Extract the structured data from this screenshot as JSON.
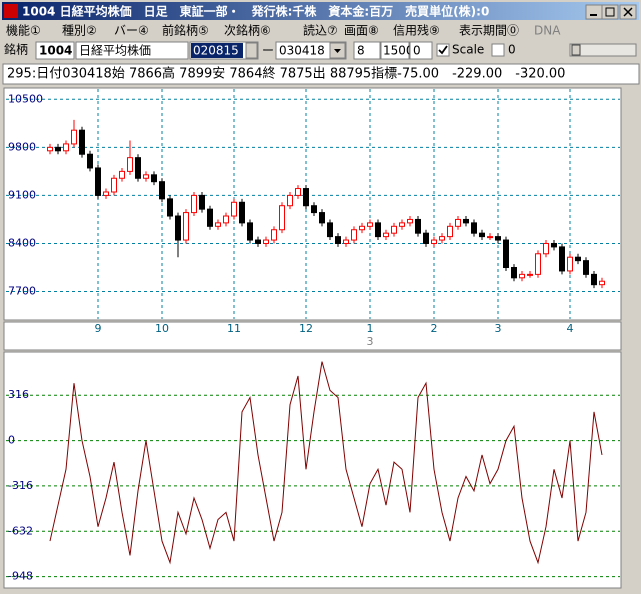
{
  "window": {
    "title": "1004 日経平均株価　日足　東証一部・　発行株:千株　資本金:百万　売買単位(株):0"
  },
  "menu": [
    "機能①",
    "種別②",
    "バー④",
    "前銘柄⑤",
    "次銘柄⑥",
    "読込⑦",
    "画面⑧",
    "信用残⑨",
    "表示期間⓪",
    "DNA"
  ],
  "toolbar": {
    "label": "銘柄",
    "code": "1004",
    "name": "日経平均株価",
    "from": "020815",
    "dash": "ー",
    "to": "030418",
    "n1": "8",
    "n2": "1500",
    "n3": "0",
    "scale": "Scale",
    "n4": "0"
  },
  "info": "295:日付030418始 7866高 7899安 7864終 7875出 88795指標-75.00　-229.00　-320.00",
  "chart_data": [
    {
      "type": "candlestick",
      "categories": [
        null,
        null,
        null,
        null,
        null,
        null,
        "9",
        null,
        null,
        null,
        null,
        null,
        null,
        null,
        "10",
        null,
        null,
        null,
        null,
        null,
        null,
        null,
        null,
        "11",
        null,
        null,
        null,
        null,
        null,
        null,
        null,
        null,
        "12",
        null,
        null,
        null,
        null,
        null,
        null,
        null,
        "1",
        null,
        null,
        null,
        null,
        null,
        null,
        null,
        "2",
        null,
        null,
        null,
        null,
        null,
        null,
        null,
        "3",
        null,
        null,
        null,
        null,
        null,
        null,
        null,
        null,
        "4",
        null,
        null,
        null,
        null
      ],
      "year_label": "3",
      "open": [
        9750,
        9800,
        9750,
        9850,
        10050,
        9700,
        9500,
        9100,
        9150,
        9350,
        9450,
        9650,
        9350,
        9400,
        9300,
        9050,
        8800,
        8450,
        8850,
        9100,
        8900,
        8650,
        8700,
        8800,
        9000,
        8700,
        8450,
        8400,
        8450,
        8600,
        8950,
        9100,
        9200,
        8950,
        8850,
        8700,
        8500,
        8400,
        8450,
        8600,
        8650,
        8700,
        8500,
        8550,
        8650,
        8700,
        8750,
        8550,
        8400,
        8450,
        8500,
        8650,
        8750,
        8700,
        8550,
        8500,
        8500,
        8450,
        8050,
        7900,
        7950,
        7950,
        8250,
        8400,
        8350,
        8000,
        8200,
        8150,
        7950,
        7800
      ],
      "high": [
        9850,
        9850,
        9900,
        10200,
        10100,
        9750,
        9550,
        9200,
        9400,
        9500,
        9900,
        9700,
        9450,
        9450,
        9350,
        9100,
        8850,
        8900,
        9150,
        9150,
        8950,
        8750,
        8850,
        9050,
        9050,
        8750,
        8500,
        8500,
        8650,
        9000,
        9150,
        9250,
        9250,
        9000,
        8900,
        8750,
        8550,
        8500,
        8650,
        8700,
        8750,
        8750,
        8600,
        8700,
        8750,
        8800,
        8800,
        8600,
        8500,
        8550,
        8700,
        8800,
        8800,
        8750,
        8600,
        8550,
        8550,
        8500,
        8100,
        8000,
        8000,
        8300,
        8450,
        8450,
        8400,
        8250,
        8250,
        8200,
        8000,
        7900
      ],
      "low": [
        9700,
        9700,
        9700,
        9800,
        9650,
        9450,
        9050,
        9050,
        9100,
        9300,
        9400,
        9300,
        9300,
        9250,
        9000,
        8750,
        8200,
        8400,
        8800,
        8850,
        8600,
        8600,
        8650,
        8750,
        8650,
        8400,
        8350,
        8350,
        8400,
        8550,
        8900,
        9050,
        8900,
        8800,
        8650,
        8450,
        8350,
        8350,
        8400,
        8550,
        8600,
        8450,
        8450,
        8500,
        8600,
        8650,
        8500,
        8350,
        8350,
        8400,
        8450,
        8600,
        8650,
        8500,
        8450,
        8450,
        8400,
        8000,
        7850,
        7850,
        7900,
        7900,
        8200,
        8300,
        7950,
        7950,
        8100,
        7900,
        7750,
        7750
      ],
      "close": [
        9800,
        9750,
        9850,
        10050,
        9700,
        9500,
        9100,
        9150,
        9350,
        9450,
        9650,
        9350,
        9400,
        9300,
        9050,
        8800,
        8450,
        8850,
        9100,
        8900,
        8650,
        8700,
        8800,
        9000,
        8700,
        8450,
        8400,
        8450,
        8600,
        8950,
        9100,
        9200,
        8950,
        8850,
        8700,
        8500,
        8400,
        8450,
        8600,
        8650,
        8700,
        8500,
        8550,
        8650,
        8700,
        8750,
        8550,
        8400,
        8450,
        8500,
        8650,
        8750,
        8700,
        8550,
        8500,
        8500,
        8450,
        8050,
        7900,
        7950,
        7950,
        8250,
        8400,
        8350,
        8000,
        8200,
        8150,
        7950,
        7800,
        7850
      ],
      "up_color": "#ff0000",
      "down_color": "#000000",
      "grid_color": "#0080a0",
      "ylim": [
        7300,
        10650
      ],
      "yticks": [
        7700,
        8400,
        9100,
        9800,
        10500
      ],
      "grid": true
    },
    {
      "type": "line",
      "values": [
        -700,
        -450,
        -200,
        400,
        0,
        -250,
        -600,
        -400,
        -150,
        -500,
        -800,
        -350,
        0,
        -350,
        -700,
        -850,
        -500,
        -650,
        -400,
        -550,
        -750,
        -550,
        -500,
        -700,
        200,
        300,
        -100,
        -400,
        -700,
        -500,
        250,
        450,
        -200,
        200,
        550,
        350,
        300,
        -200,
        -400,
        -600,
        -300,
        -200,
        -450,
        -150,
        -200,
        -500,
        300,
        400,
        -200,
        -500,
        -700,
        -400,
        -250,
        -350,
        -100,
        -300,
        -200,
        0,
        100,
        -400,
        -700,
        -850,
        -600,
        -200,
        -400,
        0,
        -700,
        -500,
        200,
        -100
      ],
      "color": "#800000",
      "grid_color": "#008000",
      "ylim": [
        -1020,
        610
      ],
      "yticks": [
        316,
        0,
        -316,
        -632,
        -948
      ],
      "grid": true
    }
  ]
}
